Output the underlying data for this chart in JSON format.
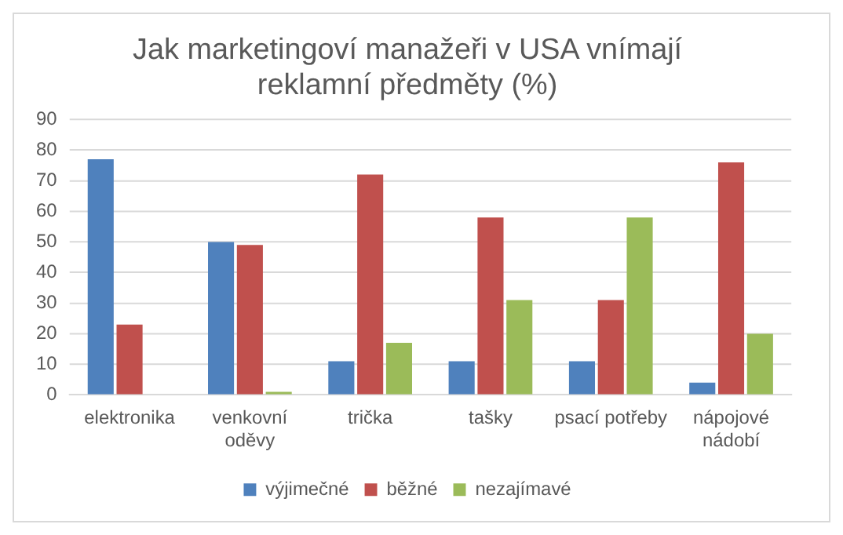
{
  "chart_data": {
    "type": "bar",
    "title": "Jak marketingoví manažeři v USA vnímají reklamní předměty (%)",
    "categories": [
      "elektronika",
      "venkovní oděvy",
      "trička",
      "tašky",
      "psací potřeby",
      "nápojové nádobí"
    ],
    "series": [
      {
        "name": "výjimečné",
        "color": "#4f81bd",
        "values": [
          77,
          50,
          11,
          11,
          11,
          4
        ]
      },
      {
        "name": "běžné",
        "color": "#c0504d",
        "values": [
          23,
          49,
          72,
          58,
          31,
          76
        ]
      },
      {
        "name": "nezajímavé",
        "color": "#9bbb59",
        "values": [
          0,
          1,
          17,
          31,
          58,
          20
        ]
      }
    ],
    "ylim": [
      0,
      90
    ],
    "yticks": [
      0,
      10,
      20,
      30,
      40,
      50,
      60,
      70,
      80,
      90
    ],
    "grid": "y",
    "legend": "bottom"
  }
}
